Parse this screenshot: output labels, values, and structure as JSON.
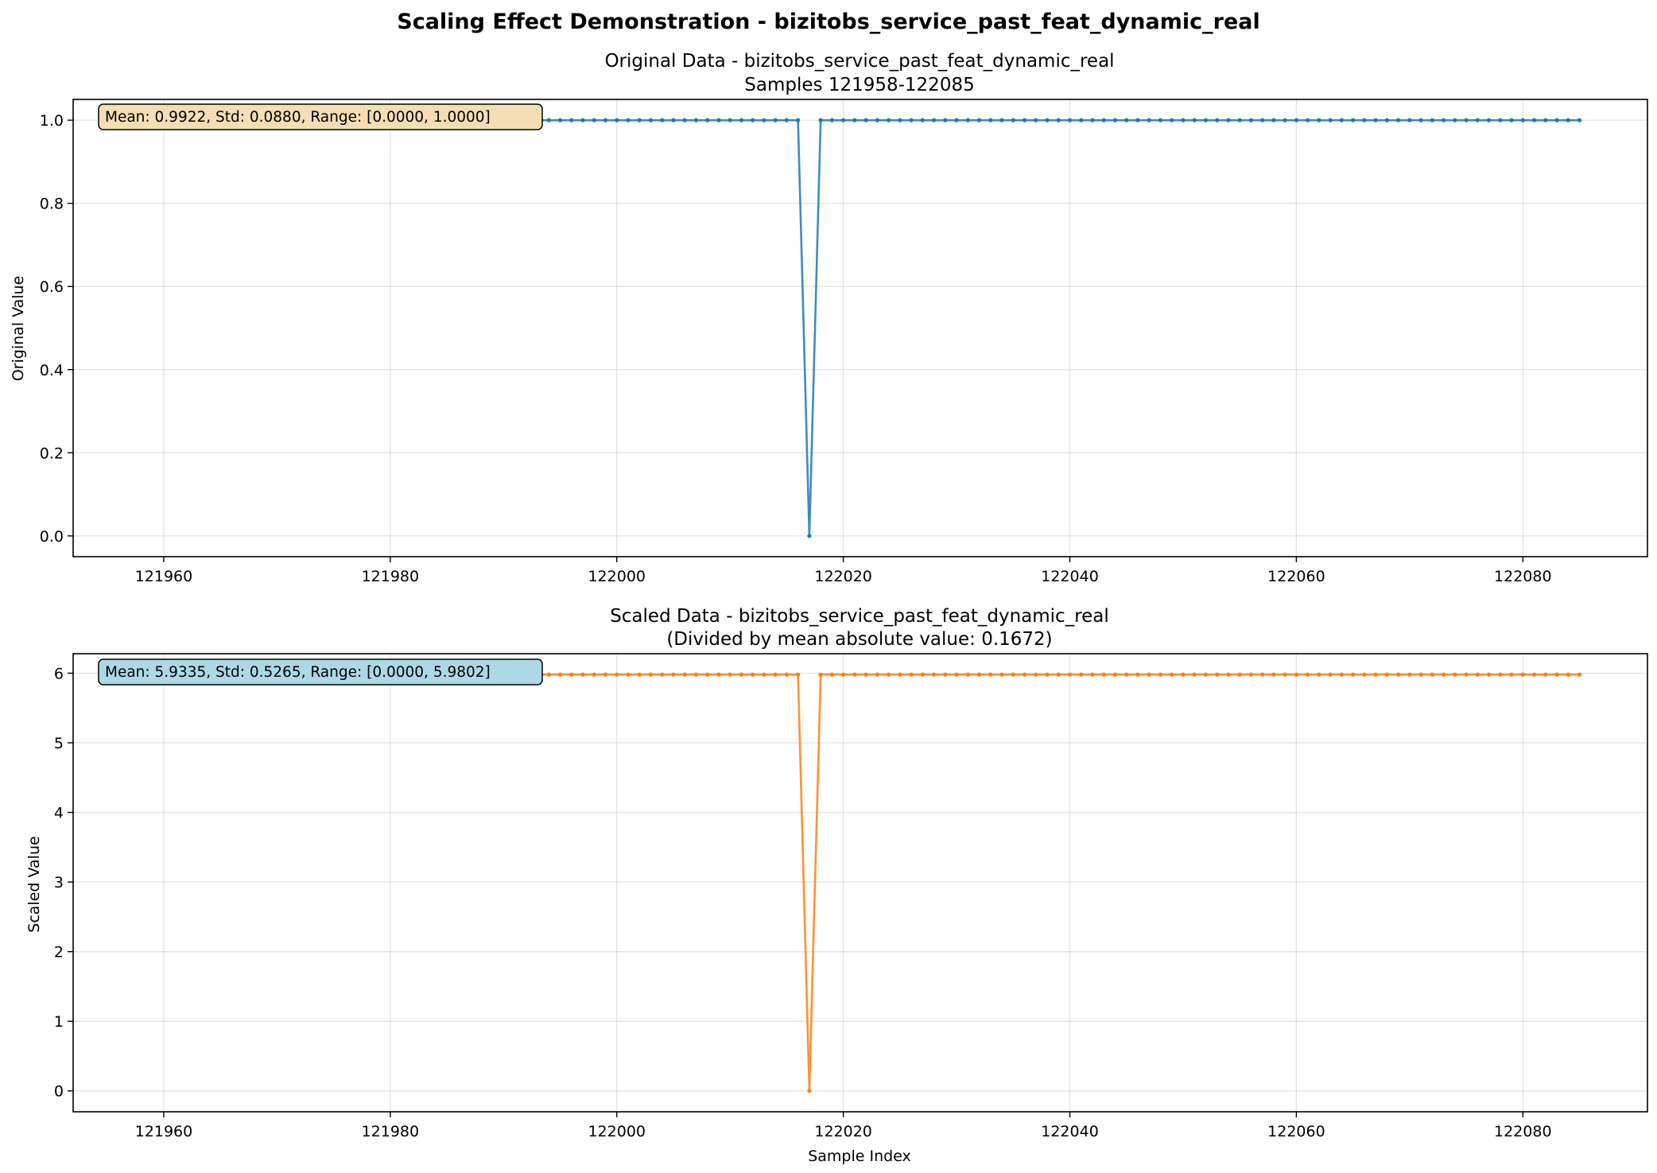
{
  "figure": {
    "suptitle": "Scaling Effect Demonstration - bizitobs_service_past_feat_dynamic_real"
  },
  "chart_data": [
    {
      "type": "line",
      "title": "Original Data - bizitobs_service_past_feat_dynamic_real",
      "subtitle": "Samples 121958-122085",
      "xlabel": "",
      "ylabel": "Original Value",
      "xlim": [
        121952,
        122091
      ],
      "ylim": [
        -0.05,
        1.05
      ],
      "xticks": [
        121960,
        121980,
        122000,
        122020,
        122040,
        122060,
        122080
      ],
      "yticks": [
        0.0,
        0.2,
        0.4,
        0.6,
        0.8,
        1.0
      ],
      "ytick_labels": [
        "0.0",
        "0.2",
        "0.4",
        "0.6",
        "0.8",
        "1.0"
      ],
      "grid": true,
      "color": "#1f77b4",
      "annotation": "Mean: 0.9922, Std: 0.0880, Range: [0.0000, 1.0000]",
      "annotation_bg": "#f5deb3",
      "series": [
        {
          "x_start": 121958,
          "x_end": 122085,
          "baseline_value": 1.0,
          "exceptions": [
            {
              "x": 122017,
              "y": 0.0
            }
          ]
        }
      ]
    },
    {
      "type": "line",
      "title": "Scaled Data - bizitobs_service_past_feat_dynamic_real",
      "subtitle": "(Divided by mean absolute value: 0.1672)",
      "xlabel": "Sample Index",
      "ylabel": "Scaled Value",
      "xlim": [
        121952,
        122091
      ],
      "ylim": [
        -0.3,
        6.28
      ],
      "xticks": [
        121960,
        121980,
        122000,
        122020,
        122040,
        122060,
        122080
      ],
      "yticks": [
        0,
        1,
        2,
        3,
        4,
        5,
        6
      ],
      "ytick_labels": [
        "0",
        "1",
        "2",
        "3",
        "4",
        "5",
        "6"
      ],
      "grid": true,
      "color": "#ff7f0e",
      "annotation": "Mean: 5.9335, Std: 0.5265, Range: [0.0000, 5.9802]",
      "annotation_bg": "#add8e6",
      "series": [
        {
          "x_start": 121958,
          "x_end": 122085,
          "baseline_value": 5.9802,
          "exceptions": [
            {
              "x": 122017,
              "y": 0.0
            }
          ]
        }
      ]
    }
  ]
}
